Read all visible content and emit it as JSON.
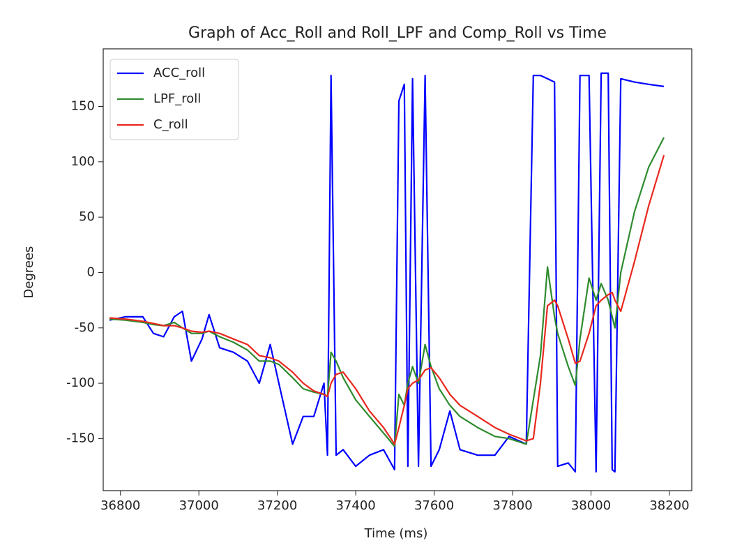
{
  "chart_data": {
    "type": "line",
    "title": "Graph of Acc_Roll and Roll_LPF and Comp_Roll vs Time",
    "xlabel": "Time (ms)",
    "ylabel": "Degrees",
    "x": [
      36772,
      36812,
      36857,
      36884,
      36910,
      36937,
      36958,
      36981,
      37008,
      37026,
      37053,
      37088,
      37124,
      37154,
      37182,
      37204,
      37239,
      37266,
      37293,
      37319,
      37328,
      37337,
      37350,
      37368,
      37400,
      37435,
      37471,
      37499,
      37510,
      37524,
      37533,
      37545,
      37560,
      37577,
      37592,
      37613,
      37640,
      37666,
      37711,
      37755,
      37791,
      37835,
      37853,
      37871,
      37889,
      37907,
      37915,
      37942,
      37960,
      37972,
      37995,
      38013,
      38026,
      38044,
      38054,
      38061,
      38076,
      38111,
      38147,
      38186
    ],
    "series": [
      {
        "name": "ACC_roll",
        "color": "#0000ff",
        "values": [
          -43,
          -40,
          -40,
          -55,
          -58,
          -40,
          -35,
          -80,
          -60,
          -38,
          -68,
          -72,
          -80,
          -100,
          -65,
          -100,
          -155,
          -130,
          -130,
          -100,
          -165,
          178,
          -165,
          -160,
          -175,
          -165,
          -160,
          -178,
          155,
          170,
          -175,
          175,
          -175,
          178,
          -175,
          -160,
          -125,
          -160,
          -165,
          -165,
          -148,
          -155,
          178,
          178,
          175,
          172,
          -175,
          -172,
          -180,
          178,
          178,
          -180,
          180,
          180,
          -178,
          -180,
          175,
          172,
          170,
          168
        ]
      },
      {
        "name": "LPF_roll",
        "color": "#2e8b2e",
        "values": [
          -42,
          -43,
          -45,
          -47,
          -48,
          -45,
          -50,
          -55,
          -55,
          -53,
          -58,
          -63,
          -70,
          -80,
          -80,
          -83,
          -95,
          -105,
          -108,
          -110,
          -112,
          -72,
          -80,
          -95,
          -115,
          -130,
          -145,
          -157,
          -110,
          -120,
          -100,
          -85,
          -100,
          -65,
          -85,
          -105,
          -120,
          -130,
          -140,
          -148,
          -150,
          -155,
          -115,
          -75,
          5,
          -40,
          -55,
          -85,
          -102,
          -60,
          -5,
          -25,
          -10,
          -25,
          -40,
          -50,
          0,
          55,
          95,
          122
        ]
      },
      {
        "name": "C_roll",
        "color": "#e8281e",
        "values": [
          -41,
          -42,
          -44,
          -46,
          -48,
          -48,
          -50,
          -53,
          -54,
          -53,
          -55,
          -60,
          -65,
          -75,
          -77,
          -80,
          -90,
          -100,
          -107,
          -110,
          -112,
          -100,
          -92,
          -90,
          -105,
          -125,
          -140,
          -155,
          -140,
          -120,
          -105,
          -100,
          -97,
          -88,
          -86,
          -95,
          -110,
          -120,
          -130,
          -140,
          -146,
          -152,
          -150,
          -100,
          -30,
          -25,
          -30,
          -60,
          -82,
          -80,
          -55,
          -30,
          -25,
          -20,
          -18,
          -25,
          -35,
          10,
          60,
          106
        ]
      }
    ],
    "xlim": [
      36756,
      38257
    ],
    "ylim": [
      -197,
      202
    ],
    "xticks": [
      36800,
      37000,
      37200,
      37400,
      37600,
      37800,
      38000,
      38200
    ],
    "yticks": [
      -150,
      -100,
      -50,
      0,
      50,
      100,
      150
    ],
    "legend": "upper left"
  }
}
